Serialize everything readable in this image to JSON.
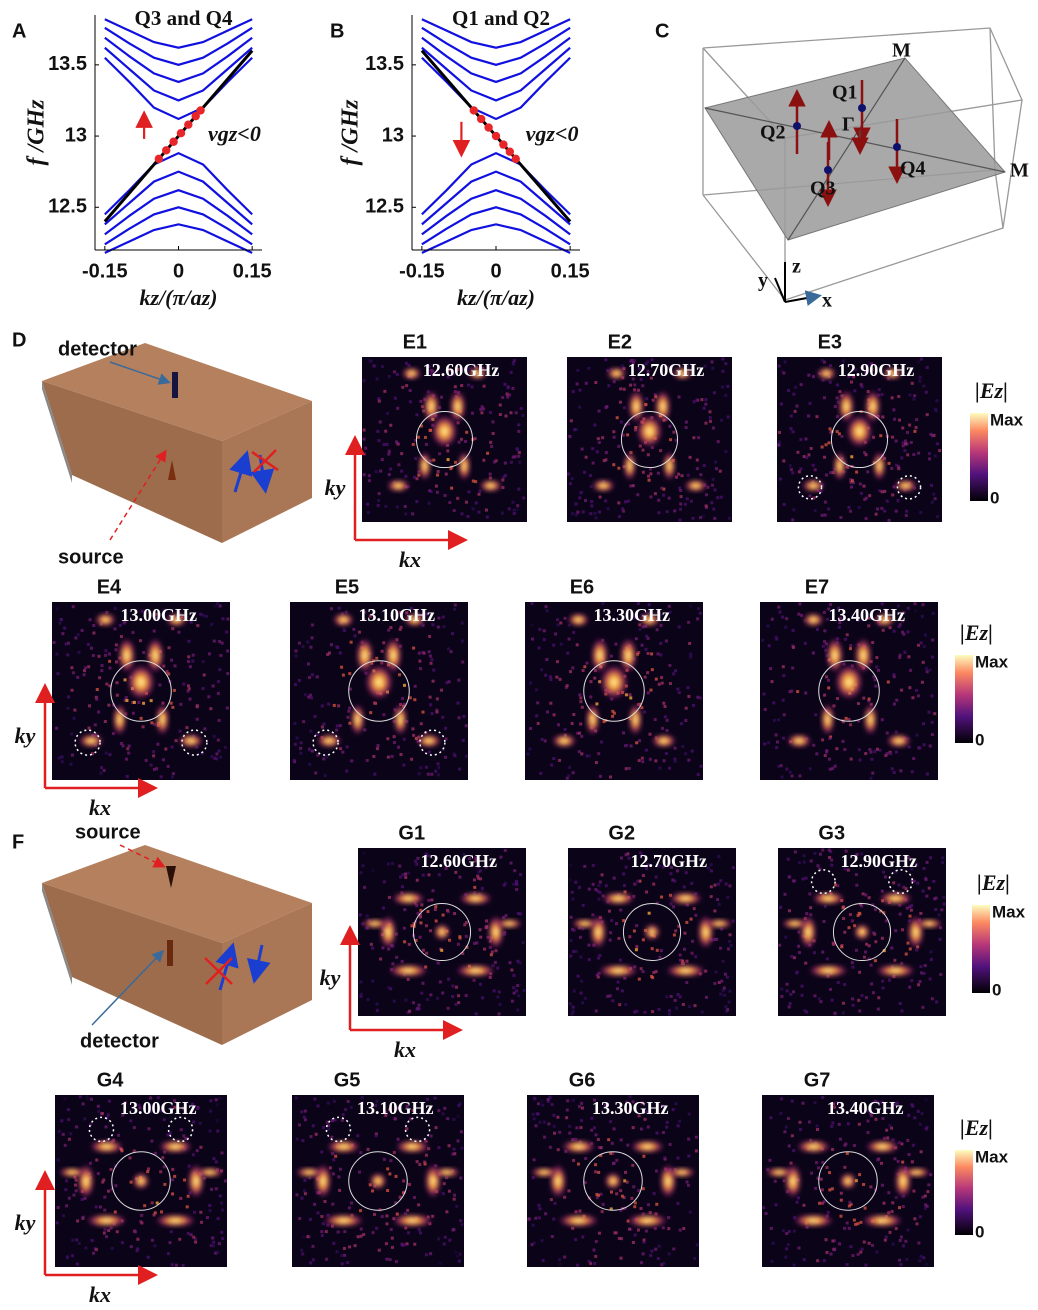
{
  "chart_data": [
    {
      "type": "line",
      "letter": "A",
      "title": "Q3 and Q4",
      "ylabel": "f /GHz",
      "xlabel": "kz/(π/az)",
      "annotation": "vgz<0",
      "arrow_direction": "up",
      "x": [
        -0.15,
        -0.1,
        -0.05,
        0,
        0.05,
        0.1,
        0.15
      ],
      "xlim": [
        -0.17,
        0.17
      ],
      "xticks": [
        -0.15,
        0,
        0.15
      ],
      "ylim": [
        12.2,
        13.85
      ],
      "yticks": [
        12.5,
        13,
        13.5
      ],
      "series": [
        {
          "color": "#1010e0",
          "values": [
            13.55,
            13.38,
            13.2,
            13.12,
            13.2,
            13.38,
            13.55
          ]
        },
        {
          "color": "#1010e0",
          "values": [
            13.62,
            13.47,
            13.32,
            13.25,
            13.32,
            13.47,
            13.62
          ]
        },
        {
          "color": "#1010e0",
          "values": [
            13.69,
            13.56,
            13.44,
            13.38,
            13.44,
            13.56,
            13.69
          ]
        },
        {
          "color": "#1010e0",
          "values": [
            13.76,
            13.65,
            13.55,
            13.5,
            13.55,
            13.65,
            13.76
          ]
        },
        {
          "color": "#1010e0",
          "values": [
            13.82,
            13.74,
            13.66,
            13.62,
            13.66,
            13.74,
            13.82
          ]
        },
        {
          "color": "#1010e0",
          "values": [
            12.45,
            12.62,
            12.8,
            12.88,
            12.8,
            12.62,
            12.45
          ]
        },
        {
          "color": "#1010e0",
          "values": [
            12.38,
            12.53,
            12.68,
            12.75,
            12.68,
            12.53,
            12.38
          ]
        },
        {
          "color": "#1010e0",
          "values": [
            12.31,
            12.44,
            12.56,
            12.62,
            12.56,
            12.44,
            12.31
          ]
        },
        {
          "color": "#1010e0",
          "values": [
            12.24,
            12.35,
            12.45,
            12.5,
            12.45,
            12.35,
            12.24
          ]
        },
        {
          "color": "#1010e0",
          "values": [
            12.18,
            12.26,
            12.34,
            12.38,
            12.34,
            12.26,
            12.18
          ]
        },
        {
          "color": "#000000",
          "values": [
            12.4,
            12.6,
            12.8,
            13.0,
            13.2,
            13.4,
            13.6
          ]
        }
      ],
      "markers": {
        "color": "#e8262a",
        "x": [
          -0.04,
          -0.025,
          -0.01,
          0.005,
          0.02,
          0.035,
          0.045
        ],
        "values": [
          12.84,
          12.9,
          12.96,
          13.02,
          13.08,
          13.14,
          13.18
        ]
      }
    },
    {
      "type": "line",
      "letter": "B",
      "title": "Q1 and Q2",
      "ylabel": "f /GHz",
      "xlabel": "kz/(π/az)",
      "annotation": "vgz<0",
      "arrow_direction": "down",
      "x": [
        -0.15,
        -0.1,
        -0.05,
        0,
        0.05,
        0.1,
        0.15
      ],
      "xlim": [
        -0.17,
        0.17
      ],
      "xticks": [
        -0.15,
        0,
        0.15
      ],
      "ylim": [
        12.2,
        13.85
      ],
      "yticks": [
        12.5,
        13,
        13.5
      ],
      "series": [
        {
          "color": "#1010e0",
          "values": [
            13.55,
            13.38,
            13.2,
            13.12,
            13.2,
            13.38,
            13.55
          ]
        },
        {
          "color": "#1010e0",
          "values": [
            13.62,
            13.47,
            13.32,
            13.25,
            13.32,
            13.47,
            13.62
          ]
        },
        {
          "color": "#1010e0",
          "values": [
            13.69,
            13.56,
            13.44,
            13.38,
            13.44,
            13.56,
            13.69
          ]
        },
        {
          "color": "#1010e0",
          "values": [
            13.76,
            13.65,
            13.55,
            13.5,
            13.55,
            13.65,
            13.76
          ]
        },
        {
          "color": "#1010e0",
          "values": [
            13.82,
            13.74,
            13.66,
            13.62,
            13.66,
            13.74,
            13.82
          ]
        },
        {
          "color": "#1010e0",
          "values": [
            12.45,
            12.62,
            12.8,
            12.88,
            12.8,
            12.62,
            12.45
          ]
        },
        {
          "color": "#1010e0",
          "values": [
            12.38,
            12.53,
            12.68,
            12.75,
            12.68,
            12.53,
            12.38
          ]
        },
        {
          "color": "#1010e0",
          "values": [
            12.31,
            12.44,
            12.56,
            12.62,
            12.56,
            12.44,
            12.31
          ]
        },
        {
          "color": "#1010e0",
          "values": [
            12.24,
            12.35,
            12.45,
            12.5,
            12.45,
            12.35,
            12.24
          ]
        },
        {
          "color": "#1010e0",
          "values": [
            12.18,
            12.26,
            12.34,
            12.38,
            12.34,
            12.26,
            12.18
          ]
        },
        {
          "color": "#000000",
          "values": [
            13.6,
            13.4,
            13.2,
            13.0,
            12.8,
            12.6,
            12.4
          ]
        }
      ],
      "markers": {
        "color": "#e8262a",
        "x": [
          -0.045,
          -0.03,
          -0.015,
          0,
          0.015,
          0.028,
          0.04
        ],
        "values": [
          13.18,
          13.12,
          13.06,
          13.0,
          12.94,
          12.89,
          12.84
        ]
      }
    }
  ],
  "diagram_c": {
    "letter": "C",
    "m_top": "M",
    "m_right": "M",
    "q1": "Q1",
    "q2": "Q2",
    "gamma": "Γ",
    "q3": "Q3",
    "q4": "Q4",
    "axis_x": "x",
    "axis_y": "y",
    "axis_z": "z"
  },
  "setup_d": {
    "letter": "D",
    "detector": "detector",
    "source": "source"
  },
  "maps_e": {
    "kx": "kx",
    "ky": "ky",
    "colorbar": {
      "title": "|Ez|",
      "max": "Max",
      "min": "0"
    },
    "items": [
      {
        "label": "E1",
        "freq": "12.60GHz",
        "highlighted": false
      },
      {
        "label": "E2",
        "freq": "12.70GHz",
        "highlighted": false
      },
      {
        "label": "E3",
        "freq": "12.90GHz",
        "highlighted": true
      },
      {
        "label": "E4",
        "freq": "13.00GHz",
        "highlighted": true
      },
      {
        "label": "E5",
        "freq": "13.10GHz",
        "highlighted": true
      },
      {
        "label": "E6",
        "freq": "13.30GHz",
        "highlighted": false
      },
      {
        "label": "E7",
        "freq": "13.40GHz",
        "highlighted": false
      }
    ]
  },
  "setup_f": {
    "letter": "F",
    "detector": "detector",
    "source": "source"
  },
  "maps_g": {
    "kx": "kx",
    "ky": "ky",
    "colorbar": {
      "title": "|Ez|",
      "max": "Max",
      "min": "0"
    },
    "items": [
      {
        "label": "G1",
        "freq": "12.60GHz",
        "highlighted": false
      },
      {
        "label": "G2",
        "freq": "12.70GHz",
        "highlighted": false
      },
      {
        "label": "G3",
        "freq": "12.90GHz",
        "highlighted": true
      },
      {
        "label": "G4",
        "freq": "13.00GHz",
        "highlighted": true
      },
      {
        "label": "G5",
        "freq": "13.10GHz",
        "highlighted": true
      },
      {
        "label": "G6",
        "freq": "13.30GHz",
        "highlighted": false
      },
      {
        "label": "G7",
        "freq": "13.40GHz",
        "highlighted": false
      }
    ]
  }
}
